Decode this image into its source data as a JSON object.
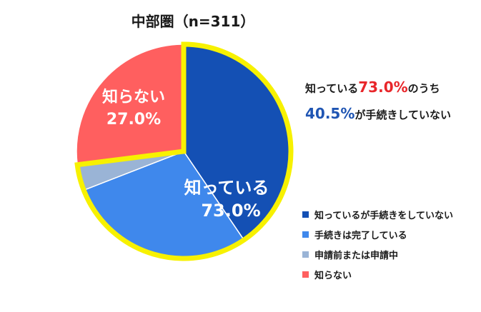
{
  "chart_data": {
    "type": "pie",
    "title": "中部圏（n=311）",
    "categories": [
      "知っているが手続きをしていない",
      "手続きは完了している",
      "申請前または申請中",
      "知らない"
    ],
    "values": [
      40.5,
      28.6,
      3.9,
      27.0
    ],
    "colors": [
      "#1450b4",
      "#3f88ec",
      "#9ab4d6",
      "#ff5f5f"
    ],
    "highlight_group": {
      "label_line1": "知っている",
      "label_line2": "73.0%",
      "value": 73.0,
      "border_color": "#f7f100"
    },
    "outside_label": {
      "label_line1": "知らない",
      "label_line2": "27.0%"
    },
    "start_angle_deg": 0,
    "direction": "clockwise",
    "legend_placement": "right"
  },
  "callout": {
    "line1_pre": "知っている",
    "line1_value": "73.0%",
    "line1_post": "のうち",
    "line2_value": "40.5%",
    "line2_post": "が手続きしていない"
  }
}
